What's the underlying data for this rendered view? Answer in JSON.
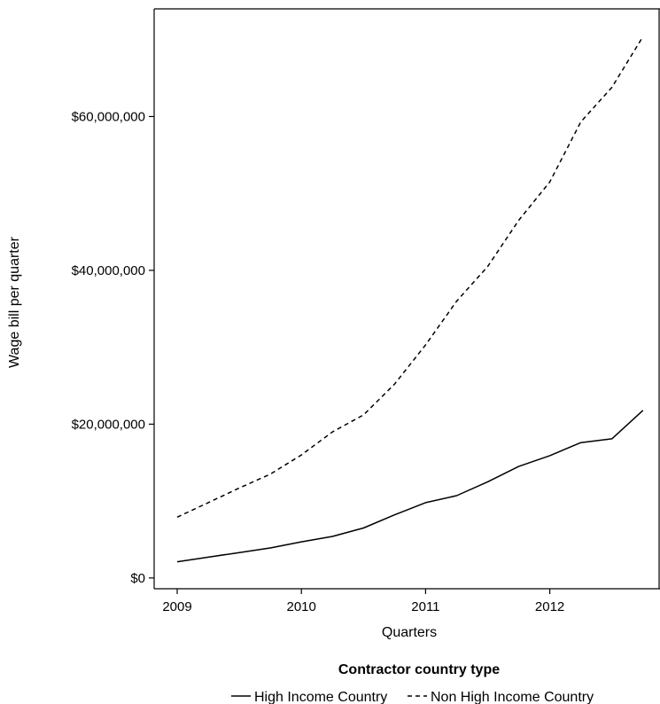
{
  "chart_data": {
    "type": "line",
    "x": [
      "2009-Q1",
      "2009-Q2",
      "2009-Q3",
      "2009-Q4",
      "2010-Q1",
      "2010-Q2",
      "2010-Q3",
      "2010-Q4",
      "2011-Q1",
      "2011-Q2",
      "2011-Q3",
      "2011-Q4",
      "2012-Q1",
      "2012-Q2",
      "2012-Q3",
      "2012-Q4"
    ],
    "x_ticks": [
      {
        "label": "2009",
        "x": "2009-Q1"
      },
      {
        "label": "2010",
        "x": "2010-Q1"
      },
      {
        "label": "2011",
        "x": "2011-Q1"
      },
      {
        "label": "2012",
        "x": "2012-Q1"
      }
    ],
    "series": [
      {
        "name": "High Income Country",
        "line_style": "solid",
        "values": [
          2100000,
          2700000,
          3300000,
          3900000,
          4700000,
          5400000,
          6500000,
          8200000,
          9800000,
          10700000,
          12500000,
          14500000,
          15900000,
          17600000,
          18100000,
          21800000
        ]
      },
      {
        "name": "Non High Income Country",
        "line_style": "dashed",
        "values": [
          7900000,
          9800000,
          11700000,
          13500000,
          16000000,
          19000000,
          21200000,
          25200000,
          30300000,
          36000000,
          40500000,
          46500000,
          51500000,
          59300000,
          63800000,
          70400000
        ]
      }
    ],
    "y_ticks": [
      {
        "label": "$0",
        "value": 0
      },
      {
        "label": "$20,000,000",
        "value": 20000000
      },
      {
        "label": "$40,000,000",
        "value": 40000000
      },
      {
        "label": "$60,000,000",
        "value": 60000000
      }
    ],
    "xlabel": "Quarters",
    "ylabel": "Wage bill per quarter",
    "ylim": [
      -1400000,
      74000000
    ],
    "grid": false,
    "legend": {
      "title": "Contractor country type",
      "placement": "bottom",
      "entries": [
        "High Income Country",
        "Non High Income Country"
      ]
    },
    "colors": {
      "line": "#000000",
      "axis": "#000000",
      "background": "#ffffff"
    }
  }
}
